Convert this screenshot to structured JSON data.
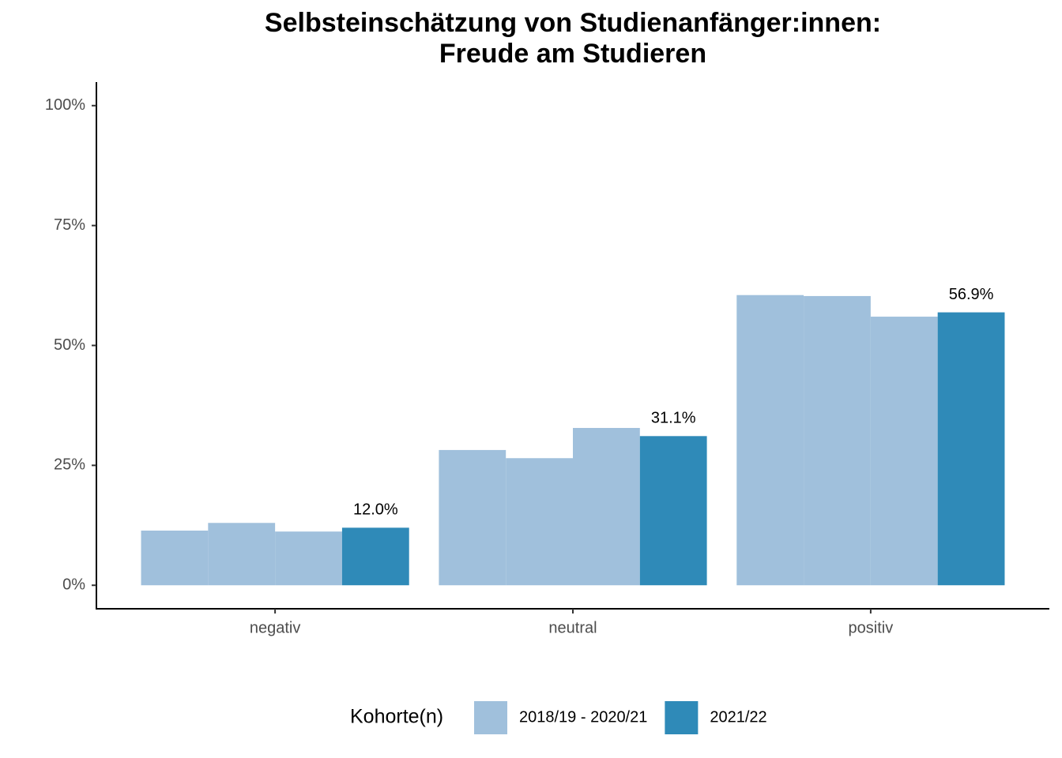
{
  "chart_data": {
    "type": "bar",
    "title": [
      "Selbsteinschätzung von Studienanfänger:innen:",
      "Freude am Studieren"
    ],
    "categories": [
      "negativ",
      "neutral",
      "positiv"
    ],
    "series": [
      {
        "name": "2018/19 - 2020/21",
        "color": "#a0c0dc",
        "values": [
          11.4,
          28.2,
          60.5
        ]
      },
      {
        "name": null,
        "color": "#a0c0dc",
        "values": [
          13.0,
          26.5,
          60.3
        ]
      },
      {
        "name": null,
        "color": "#a0c0dc",
        "values": [
          11.2,
          32.8,
          56.0
        ]
      },
      {
        "name": "2021/22",
        "color": "#2f8ab8",
        "values": [
          12.0,
          31.1,
          56.9
        ],
        "value_labels": [
          "12.0%",
          "31.1%",
          "56.9%"
        ]
      }
    ],
    "ylim": [
      -4.9,
      104.9
    ],
    "yticks": [
      {
        "value": 0,
        "label": "0%"
      },
      {
        "value": 25,
        "label": "25%"
      },
      {
        "value": 50,
        "label": "50%"
      },
      {
        "value": 75,
        "label": "75%"
      },
      {
        "value": 100,
        "label": "100%"
      }
    ],
    "grid": false,
    "legend": "bottom",
    "legend_title": "Kohorte(n)"
  }
}
